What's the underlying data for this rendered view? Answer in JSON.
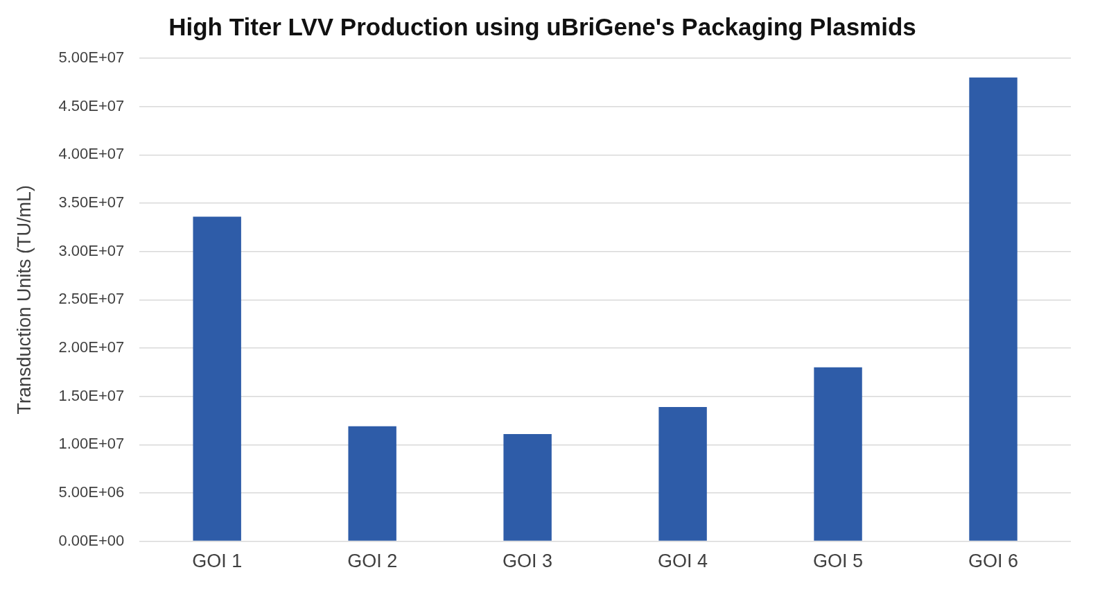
{
  "chart_data": {
    "type": "bar",
    "title": "High Titer LVV Production using uBriGene's Packaging Plasmids",
    "y_label": "Transduction Units (TU/mL)",
    "categories": [
      "GOI 1",
      "GOI 2",
      "GOI 3",
      "GOI 4",
      "GOI 5",
      "GOI 6"
    ],
    "values": [
      33600000,
      11900000,
      11100000,
      13900000,
      18000000,
      48000000
    ],
    "color": "#2e5ca8",
    "ylim": [
      0,
      50000000
    ],
    "yticks": [
      {
        "value": 0,
        "label": "0.00E+00"
      },
      {
        "value": 5000000,
        "label": "5.00E+06"
      },
      {
        "value": 10000000,
        "label": "1.00E+07"
      },
      {
        "value": 15000000,
        "label": "1.50E+07"
      },
      {
        "value": 20000000,
        "label": "2.00E+07"
      },
      {
        "value": 25000000,
        "label": "2.50E+07"
      },
      {
        "value": 30000000,
        "label": "3.00E+07"
      },
      {
        "value": 35000000,
        "label": "3.50E+07"
      },
      {
        "value": 40000000,
        "label": "4.00E+07"
      },
      {
        "value": 45000000,
        "label": "4.50E+07"
      },
      {
        "value": 50000000,
        "label": "5.00E+07"
      }
    ],
    "grid": true
  }
}
